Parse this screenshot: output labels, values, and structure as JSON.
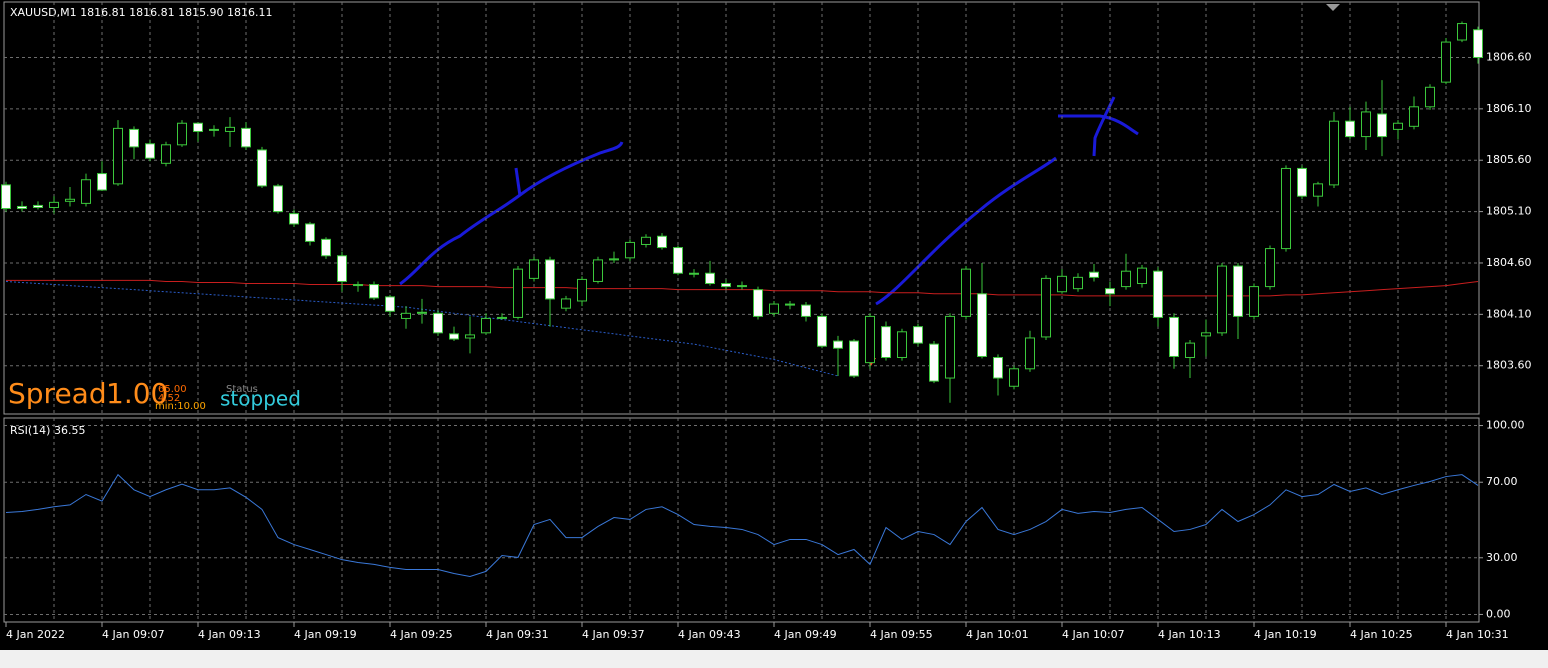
{
  "chart_data": [
    {
      "type": "candlestick",
      "title": "XAUUSD,M1  1816.81 1816.81 1815.90 1816.11",
      "categories": [
        "4 Jan 2022",
        null,
        null,
        null,
        null,
        null,
        "4 Jan 09:07",
        null,
        null,
        null,
        null,
        null,
        "4 Jan 09:13",
        null,
        null,
        null,
        null,
        null,
        "4 Jan 09:19",
        null,
        null,
        null,
        null,
        null,
        "4 Jan 09:25",
        null,
        null,
        null,
        null,
        null,
        "4 Jan 09:31",
        null,
        null,
        null,
        null,
        null,
        "4 Jan 09:37",
        null,
        null,
        null,
        null,
        null,
        "4 Jan 09:43",
        null,
        null,
        null,
        null,
        null,
        "4 Jan 09:49",
        null,
        null,
        null,
        null,
        null,
        "4 Jan 09:55",
        null,
        null,
        null,
        null,
        null,
        "4 Jan 10:01",
        null,
        null,
        null,
        null,
        null,
        "4 Jan 10:07",
        null,
        null,
        null,
        null,
        null,
        "4 Jan 10:13",
        null,
        null,
        null,
        null,
        null,
        "4 Jan 10:19",
        null,
        null,
        null,
        null,
        null,
        "4 Jan 10:25",
        null,
        null,
        null,
        null,
        null,
        "4 Jan 10:31",
        null,
        null
      ],
      "open": [
        1805.36,
        1805.15,
        1805.16,
        1805.14,
        1805.2,
        1805.18,
        1805.47,
        1805.37,
        1805.9,
        1805.76,
        1805.57,
        1805.75,
        1805.96,
        1805.9,
        1805.88,
        1805.91,
        1805.7,
        1805.35,
        1805.08,
        1804.98,
        1804.83,
        1804.67,
        1804.39,
        1804.39,
        1804.27,
        1804.06,
        1804.12,
        1804.11,
        1803.91,
        1803.87,
        1803.92,
        1804.06,
        1804.07,
        1804.45,
        1804.63,
        1804.16,
        1804.23,
        1804.42,
        1804.63,
        1804.65,
        1804.78,
        1804.86,
        1804.75,
        1804.5,
        1804.5,
        1804.4,
        1804.38,
        1804.34,
        1804.11,
        1804.2,
        1804.19,
        1804.08,
        1803.84,
        1803.84,
        1803.63,
        1803.98,
        1803.68,
        1803.98,
        1803.81,
        1803.48,
        1804.08,
        1804.3,
        1803.68,
        1803.4,
        1803.57,
        1803.88,
        1804.32,
        1804.35,
        1804.51,
        1804.35,
        1804.37,
        1804.4,
        1804.52,
        1804.07,
        1803.68,
        1803.89,
        1803.92,
        1804.57,
        1804.08,
        1804.37,
        1804.74,
        1805.52,
        1805.25,
        1805.36,
        1805.98,
        1805.83,
        1806.05,
        1805.9,
        1805.93,
        1806.12,
        1806.36,
        1806.77,
        1806.87
      ],
      "high": [
        1805.39,
        1805.2,
        1805.2,
        1805.25,
        1805.34,
        1805.47,
        1805.59,
        1805.99,
        1805.93,
        1805.8,
        1805.78,
        1805.99,
        1805.97,
        1805.94,
        1806.02,
        1805.97,
        1805.73,
        1805.37,
        1805.12,
        1805.0,
        1804.85,
        1804.71,
        1804.42,
        1804.42,
        1804.29,
        1804.18,
        1804.25,
        1804.14,
        1803.98,
        1804.08,
        1804.11,
        1804.11,
        1804.57,
        1804.66,
        1804.66,
        1804.28,
        1804.47,
        1804.66,
        1804.71,
        1804.83,
        1804.88,
        1804.89,
        1804.77,
        1804.54,
        1804.62,
        1804.44,
        1804.42,
        1804.37,
        1804.23,
        1804.23,
        1804.22,
        1804.11,
        1803.89,
        1803.86,
        1804.11,
        1804.03,
        1803.96,
        1804.01,
        1803.84,
        1804.11,
        1804.57,
        1804.6,
        1803.71,
        1803.6,
        1803.94,
        1804.48,
        1804.54,
        1804.5,
        1804.59,
        1804.42,
        1804.69,
        1804.58,
        1804.56,
        1804.11,
        1803.85,
        1804.05,
        1804.6,
        1804.6,
        1804.4,
        1804.77,
        1805.55,
        1805.55,
        1805.39,
        1806.07,
        1806.12,
        1806.17,
        1806.38,
        1805.99,
        1806.22,
        1806.34,
        1806.79,
        1806.95,
        1806.9
      ],
      "low": [
        1805.1,
        1805.1,
        1805.12,
        1805.08,
        1805.15,
        1805.15,
        1805.3,
        1805.35,
        1805.61,
        1805.59,
        1805.54,
        1805.73,
        1805.78,
        1805.83,
        1805.73,
        1805.7,
        1805.33,
        1805.08,
        1804.95,
        1804.77,
        1804.64,
        1804.32,
        1804.32,
        1804.24,
        1804.08,
        1803.96,
        1804.01,
        1803.89,
        1803.84,
        1803.72,
        1803.9,
        1804.05,
        1804.05,
        1804.42,
        1803.98,
        1804.13,
        1804.18,
        1804.4,
        1804.6,
        1804.62,
        1804.75,
        1804.73,
        1804.48,
        1804.46,
        1804.38,
        1804.34,
        1804.34,
        1804.05,
        1804.08,
        1804.15,
        1804.03,
        1803.77,
        1803.5,
        1803.48,
        1803.57,
        1803.65,
        1803.65,
        1803.79,
        1803.43,
        1803.24,
        1804.05,
        1803.67,
        1803.31,
        1803.37,
        1803.54,
        1803.85,
        1804.3,
        1804.32,
        1804.42,
        1804.18,
        1804.34,
        1804.36,
        1803.98,
        1803.57,
        1803.48,
        1803.69,
        1803.89,
        1803.86,
        1804.05,
        1804.34,
        1804.71,
        1805.22,
        1805.15,
        1805.33,
        1805.8,
        1805.7,
        1805.64,
        1805.8,
        1805.9,
        1806.09,
        1806.34,
        1806.75,
        1806.54
      ],
      "close": [
        1805.13,
        1805.13,
        1805.14,
        1805.19,
        1805.22,
        1805.41,
        1805.31,
        1805.91,
        1805.73,
        1805.62,
        1805.75,
        1805.96,
        1805.88,
        1805.89,
        1805.92,
        1805.73,
        1805.35,
        1805.1,
        1804.98,
        1804.81,
        1804.67,
        1804.42,
        1804.38,
        1804.26,
        1804.13,
        1804.11,
        1804.11,
        1803.92,
        1803.86,
        1803.9,
        1804.06,
        1804.07,
        1804.54,
        1804.63,
        1804.25,
        1804.25,
        1804.44,
        1804.63,
        1804.64,
        1804.8,
        1804.85,
        1804.75,
        1804.5,
        1804.49,
        1804.4,
        1804.37,
        1804.37,
        1804.08,
        1804.2,
        1804.19,
        1804.08,
        1803.79,
        1803.77,
        1803.5,
        1804.08,
        1803.68,
        1803.93,
        1803.82,
        1803.45,
        1804.08,
        1804.54,
        1803.69,
        1803.48,
        1803.57,
        1803.87,
        1804.45,
        1804.47,
        1804.46,
        1804.46,
        1804.3,
        1804.52,
        1804.55,
        1804.07,
        1803.69,
        1803.82,
        1803.92,
        1804.57,
        1804.08,
        1804.37,
        1804.74,
        1805.52,
        1805.25,
        1805.37,
        1805.98,
        1805.83,
        1806.07,
        1805.83,
        1805.96,
        1806.12,
        1806.31,
        1806.75,
        1806.93,
        1806.6
      ],
      "lines": [
        {
          "color": "#c81e1e",
          "dashed": false,
          "values": [
            1804.43,
            1804.43,
            1804.43,
            1804.43,
            1804.43,
            1804.43,
            1804.43,
            1804.43,
            1804.43,
            1804.43,
            1804.42,
            1804.42,
            1804.41,
            1804.41,
            1804.41,
            1804.4,
            1804.4,
            1804.4,
            1804.4,
            1804.39,
            1804.39,
            1804.39,
            1804.39,
            1804.38,
            1804.38,
            1804.38,
            1804.38,
            1804.37,
            1804.37,
            1804.37,
            1804.37,
            1804.36,
            1804.36,
            1804.36,
            1804.36,
            1804.36,
            1804.35,
            1804.35,
            1804.35,
            1804.35,
            1804.35,
            1804.35,
            1804.34,
            1804.34,
            1804.34,
            1804.34,
            1804.34,
            1804.34,
            1804.33,
            1804.33,
            1804.33,
            1804.33,
            1804.32,
            1804.32,
            1804.32,
            1804.31,
            1804.31,
            1804.31,
            1804.3,
            1804.3,
            1804.3,
            1804.3,
            1804.29,
            1804.29,
            1804.29,
            1804.29,
            1804.29,
            1804.28,
            1804.28,
            1804.28,
            1804.28,
            1804.28,
            1804.28,
            1804.28,
            1804.28,
            1804.28,
            1804.28,
            1804.28,
            1804.28,
            1804.28,
            1804.29,
            1804.29,
            1804.3,
            1804.31,
            1804.32,
            1804.33,
            1804.34,
            1804.35,
            1804.36,
            1804.37,
            1804.38,
            1804.4,
            1804.42
          ]
        },
        {
          "color": "#2a5cc8",
          "dashed": true,
          "values": [
            1804.42,
            1804.41,
            1804.4,
            1804.39,
            1804.38,
            1804.37,
            1804.36,
            1804.35,
            1804.34,
            1804.33,
            1804.32,
            1804.31,
            1804.3,
            1804.29,
            1804.28,
            1804.27,
            1804.26,
            1804.25,
            1804.24,
            1804.23,
            1804.22,
            1804.21,
            1804.2,
            1804.19,
            1804.18,
            1804.17,
            1804.15,
            1804.13,
            1804.11,
            1804.09,
            1804.07,
            1804.05,
            1804.03,
            1804.01,
            1803.99,
            1803.97,
            1803.95,
            1803.93,
            1803.91,
            1803.89,
            1803.87,
            1803.85,
            1803.83,
            1803.81,
            1803.78,
            1803.75,
            1803.72,
            1803.69,
            1803.66,
            1803.62,
            1803.58,
            1803.54,
            1803.5,
            null,
            null,
            null,
            null,
            null,
            null,
            null,
            null,
            null,
            null,
            null,
            null,
            null,
            null,
            null,
            null,
            null,
            null,
            null,
            null,
            null,
            null,
            null,
            null,
            null,
            null,
            null,
            null,
            null,
            null,
            null,
            null,
            null,
            null,
            null,
            null,
            null,
            null,
            null,
            null
          ]
        }
      ],
      "colors": {
        "up": "#000000",
        "down": "#ffffff",
        "edge": "#3cc83c"
      },
      "ylim": [
        1803.13,
        1807.14
      ],
      "yticks": [
        {
          "value": 1803.6,
          "label": "1803.60"
        },
        {
          "value": 1804.1,
          "label": "1804.10"
        },
        {
          "value": 1804.6,
          "label": "1804.60"
        },
        {
          "value": 1805.1,
          "label": "1805.10"
        },
        {
          "value": 1805.6,
          "label": "1805.60"
        },
        {
          "value": 1806.1,
          "label": "1806.10"
        },
        {
          "value": 1806.6,
          "label": "1806.60"
        }
      ],
      "grid": true,
      "annotations": [
        "Spread",
        "1.00",
        "65.00",
        "Status",
        "4.52",
        "min:10.00",
        "stopped"
      ]
    },
    {
      "type": "line",
      "title": "RSI(14) 36.55",
      "color": "#3a78d8",
      "values": [
        54,
        54.5,
        55.6,
        57,
        58,
        63.5,
        60,
        74,
        66,
        62.4,
        66,
        69,
        66,
        66,
        67,
        62,
        55.6,
        40.7,
        37,
        34.4,
        31.7,
        29,
        27.5,
        26.5,
        24.9,
        23.8,
        23.8,
        23.8,
        21.7,
        20.1,
        22.8,
        31.2,
        30.2,
        47.6,
        50.3,
        40.7,
        40.7,
        46.6,
        51.3,
        50.3,
        55.6,
        57,
        52.9,
        47.6,
        46.6,
        46,
        45,
        42.3,
        37,
        39.7,
        39.7,
        37,
        31.7,
        34.4,
        26.5,
        46,
        39.7,
        43.9,
        42.3,
        37,
        49.2,
        56.6,
        45,
        42.3,
        45,
        49.2,
        55.6,
        53.5,
        54.5,
        54,
        55.6,
        56.6,
        50.3,
        43.9,
        45,
        47.6,
        55.6,
        49.2,
        52.9,
        58,
        66,
        62.4,
        63.5,
        68.8,
        65.1,
        67,
        63.5,
        66,
        68.3,
        70.4,
        73,
        74,
        68.3
      ],
      "ylim": [
        -4,
        104
      ],
      "yticks": [
        {
          "value": 0,
          "label": "0.00"
        },
        {
          "value": 30,
          "label": "30.00"
        },
        {
          "value": 70,
          "label": "70.00"
        },
        {
          "value": 100,
          "label": "100.00"
        }
      ],
      "grid": true
    }
  ]
}
